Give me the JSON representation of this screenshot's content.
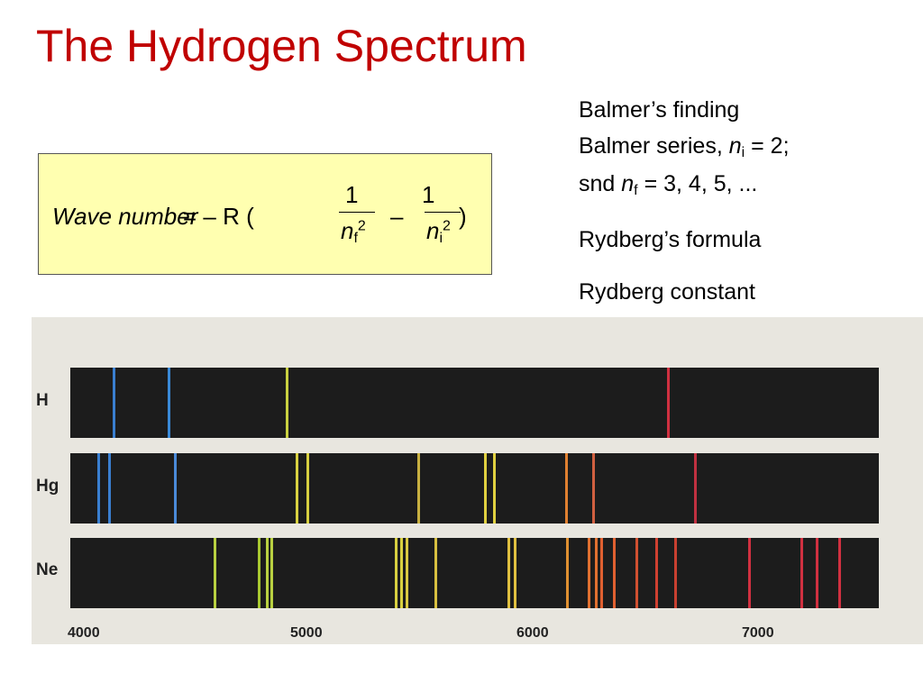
{
  "title": "The Hydrogen Spectrum",
  "formula": {
    "lhs": "Wave number",
    "rhs": "= – R (",
    "num1": "1",
    "den1_var": "n",
    "den1_sub": "f",
    "den1_exp": "2",
    "minus": "–",
    "num2": "1",
    "den2_var": "n",
    "den2_sub": "i",
    "den2_exp": "2",
    "close": ")"
  },
  "notes": {
    "line1": "Balmer’s finding",
    "line2": {
      "a": "Balmer series, ",
      "var": "n",
      "sub": "i",
      "b": " = 2;"
    },
    "line3": {
      "a": "snd ",
      "var": "n",
      "sub": "f",
      "b": " = 3, 4, 5, ..."
    },
    "line4": "Rydberg’s formula",
    "line5": "Rydberg constant"
  },
  "spectrum": {
    "rows": [
      "H",
      "Hg",
      "Ne"
    ],
    "axis_labels": [
      "4000",
      "5000",
      "6000",
      "7000"
    ]
  }
}
